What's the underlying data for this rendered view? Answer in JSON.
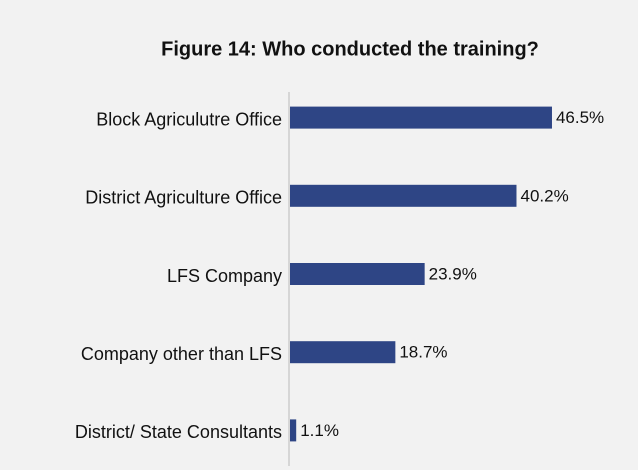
{
  "chart_data": {
    "type": "bar",
    "orientation": "horizontal",
    "title": "Figure 14: Who conducted the training?",
    "categories": [
      "Block Agriculutre Office",
      "District Agriculture Office",
      "LFS Company",
      "Company other than LFS",
      "District/ State Consultants"
    ],
    "values": [
      46.5,
      40.2,
      23.9,
      18.7,
      1.1
    ],
    "value_labels": [
      "46.5%",
      "40.2%",
      "23.9%",
      "18.7%",
      "1.1%"
    ],
    "color": "#2e4585"
  }
}
